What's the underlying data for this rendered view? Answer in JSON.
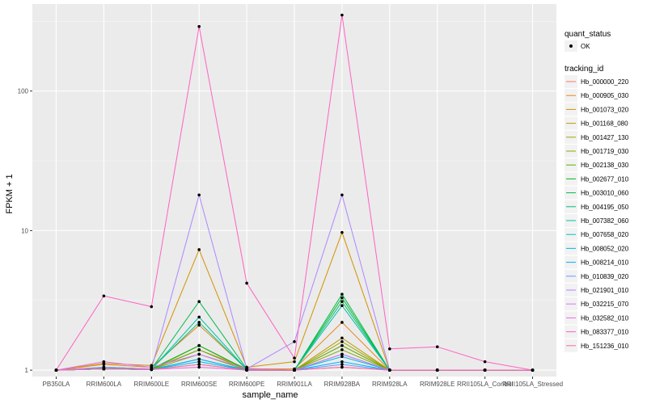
{
  "chart_data": {
    "type": "line",
    "x_label": "sample_name",
    "y_label": "FPKM + 1",
    "y_scale": "log10",
    "y_range": [
      0.9,
      420
    ],
    "y_ticks": [
      1,
      10,
      100
    ],
    "y_tick_labels": [
      "1",
      "10",
      "100"
    ],
    "categories": [
      "PB350LA",
      "RRIM600LA",
      "RRIM600LE",
      "RRIM600SE",
      "RRIM600PE",
      "RRIM901LA",
      "RRIM928BA",
      "RRIM928LA",
      "RRIM928LE",
      "RRII105LA_Control",
      "RRII105LA_Stressed"
    ],
    "x_tick_labels": [
      "PB350LA",
      "RRIM600LA",
      "RRIM600LE",
      "RRIM600SE",
      "RRIM600PE",
      "RRIM901LA",
      "RRIM928BA",
      "RRIM928LA",
      "RRIM928LE",
      "RRII105LA_Control",
      "RRII105LA_Stressed"
    ],
    "shape_legend": {
      "title": "quant_status",
      "entries": [
        "OK"
      ]
    },
    "color_legend_title": "tracking_id",
    "series": [
      {
        "name": "Hb_000000_220",
        "color": "#F8766D",
        "values": [
          1.0,
          1.02,
          1.02,
          1.4,
          1.03,
          1.0,
          1.5,
          1.0,
          1.0,
          1.0,
          1.0
        ]
      },
      {
        "name": "Hb_000905_030",
        "color": "#E7861B",
        "values": [
          1.0,
          1.1,
          1.05,
          2.1,
          1.02,
          1.02,
          2.2,
          1.0,
          1.0,
          1.0,
          1.0
        ]
      },
      {
        "name": "Hb_001073_020",
        "color": "#D39200",
        "values": [
          1.0,
          1.12,
          1.08,
          7.3,
          1.05,
          1.15,
          9.7,
          1.0,
          1.0,
          1.0,
          1.0
        ]
      },
      {
        "name": "Hb_001168_080",
        "color": "#BB9D00",
        "values": [
          1.0,
          1.02,
          1.01,
          1.5,
          1.0,
          1.0,
          1.7,
          1.0,
          1.0,
          1.0,
          1.0
        ]
      },
      {
        "name": "Hb_001427_130",
        "color": "#A3A500",
        "values": [
          1.0,
          1.02,
          1.01,
          1.5,
          1.0,
          1.0,
          1.6,
          1.0,
          1.0,
          1.0,
          1.0
        ]
      },
      {
        "name": "Hb_001719_030",
        "color": "#85AD00",
        "values": [
          1.0,
          1.02,
          1.01,
          1.3,
          1.0,
          1.0,
          1.4,
          1.0,
          1.0,
          1.0,
          1.0
        ]
      },
      {
        "name": "Hb_002138_030",
        "color": "#5BB300",
        "values": [
          1.0,
          1.02,
          1.01,
          1.4,
          1.0,
          1.0,
          1.5,
          1.0,
          1.0,
          1.0,
          1.0
        ]
      },
      {
        "name": "Hb_002677_010",
        "color": "#00B81F",
        "values": [
          1.0,
          1.05,
          1.02,
          1.5,
          1.01,
          1.0,
          3.3,
          1.0,
          1.0,
          1.0,
          1.0
        ]
      },
      {
        "name": "Hb_003010_060",
        "color": "#00BB4E",
        "values": [
          1.0,
          1.03,
          1.02,
          3.1,
          1.02,
          1.0,
          3.5,
          1.0,
          1.0,
          1.0,
          1.0
        ]
      },
      {
        "name": "Hb_004195_050",
        "color": "#00BF7D",
        "values": [
          1.0,
          1.03,
          1.02,
          2.2,
          1.01,
          1.0,
          3.1,
          1.0,
          1.0,
          1.0,
          1.0
        ]
      },
      {
        "name": "Hb_007382_060",
        "color": "#00C1A3",
        "values": [
          1.0,
          1.02,
          1.01,
          2.4,
          1.01,
          1.0,
          2.9,
          1.0,
          1.0,
          1.0,
          1.0
        ]
      },
      {
        "name": "Hb_007658_020",
        "color": "#00BFC4",
        "values": [
          1.0,
          1.02,
          1.01,
          1.2,
          1.0,
          1.0,
          1.3,
          1.0,
          1.0,
          1.0,
          1.0
        ]
      },
      {
        "name": "Hb_008052_020",
        "color": "#00B9E3",
        "values": [
          1.0,
          1.02,
          1.01,
          1.15,
          1.0,
          1.0,
          1.25,
          1.0,
          1.0,
          1.0,
          1.0
        ]
      },
      {
        "name": "Hb_008214_010",
        "color": "#00ADFA",
        "values": [
          1.0,
          1.02,
          1.01,
          1.2,
          1.0,
          1.0,
          1.15,
          1.0,
          1.0,
          1.0,
          1.0
        ]
      },
      {
        "name": "Hb_010839_020",
        "color": "#619CFF",
        "values": [
          1.0,
          1.02,
          1.01,
          1.1,
          1.0,
          1.0,
          1.1,
          1.0,
          1.0,
          1.0,
          1.0
        ]
      },
      {
        "name": "Hb_021901_010",
        "color": "#AE87FF",
        "values": [
          1.0,
          1.05,
          1.02,
          18.0,
          1.02,
          1.6,
          18.0,
          1.0,
          1.0,
          1.0,
          1.0
        ]
      },
      {
        "name": "Hb_032215_070",
        "color": "#DB72FB",
        "values": [
          1.0,
          1.15,
          1.05,
          1.3,
          1.02,
          1.0,
          1.3,
          1.0,
          1.0,
          1.0,
          1.0
        ]
      },
      {
        "name": "Hb_032582_010",
        "color": "#F564E3",
        "values": [
          1.0,
          1.02,
          1.01,
          1.05,
          1.0,
          1.0,
          1.05,
          1.0,
          1.0,
          1.0,
          1.0
        ]
      },
      {
        "name": "Hb_083377_010",
        "color": "#FF61C3",
        "values": [
          1.0,
          3.4,
          2.85,
          290,
          4.2,
          1.22,
          350,
          1.42,
          1.47,
          1.15,
          1.0
        ]
      },
      {
        "name": "Hb_151236_010",
        "color": "#FF6C91",
        "values": [
          1.0,
          1.02,
          1.01,
          1.1,
          1.0,
          1.0,
          1.05,
          1.0,
          1.0,
          1.0,
          1.0
        ]
      }
    ]
  }
}
